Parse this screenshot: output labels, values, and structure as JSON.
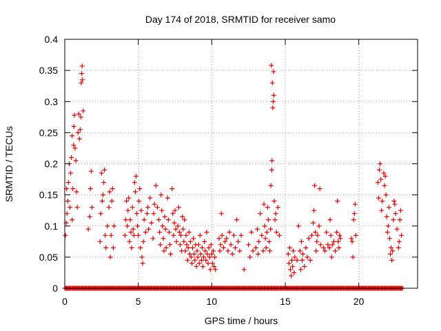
{
  "chart_data": {
    "type": "scatter",
    "title": "Day 174 of 2018, SRMTID for receiver samo",
    "xlabel": "GPS time / hours",
    "ylabel": "SRMTID / TECUs",
    "xlim": [
      0,
      24
    ],
    "ylim": [
      0,
      0.4
    ],
    "x_ticks": [
      0,
      5,
      10,
      15,
      20
    ],
    "x_tick_labels": [
      "0",
      "5",
      "10",
      "15",
      "20"
    ],
    "y_ticks": [
      0,
      0.05,
      0.1,
      0.15,
      0.2,
      0.25,
      0.3,
      0.35,
      0.4
    ],
    "y_tick_labels": [
      "0",
      "0.05",
      "0.1",
      "0.15",
      "0.2",
      "0.25",
      "0.3",
      "0.35",
      "0.4"
    ],
    "grid": true,
    "marker": "+",
    "color": "#dd0000",
    "series": [
      {
        "name": "SRMTID",
        "points": [
          [
            0.05,
            0.085
          ],
          [
            0.1,
            0.105
          ],
          [
            0.12,
            0.16
          ],
          [
            0.15,
            0.12
          ],
          [
            0.2,
            0.14
          ],
          [
            0.25,
            0.17
          ],
          [
            0.3,
            0.2
          ],
          [
            0.35,
            0.13
          ],
          [
            0.4,
            0.185
          ],
          [
            0.45,
            0.21
          ],
          [
            0.5,
            0.245
          ],
          [
            0.5,
            0.11
          ],
          [
            0.55,
            0.16
          ],
          [
            0.6,
            0.23
          ],
          [
            0.62,
            0.26
          ],
          [
            0.65,
            0.278
          ],
          [
            0.7,
            0.225
          ],
          [
            0.75,
            0.205
          ],
          [
            0.8,
            0.155
          ],
          [
            0.85,
            0.13
          ],
          [
            0.9,
            0.25
          ],
          [
            0.95,
            0.28
          ],
          [
            1.0,
            0.24
          ],
          [
            1.05,
            0.255
          ],
          [
            1.1,
            0.275
          ],
          [
            1.12,
            0.33
          ],
          [
            1.15,
            0.345
          ],
          [
            1.18,
            0.357
          ],
          [
            1.2,
            0.335
          ],
          [
            1.25,
            0.285
          ],
          [
            1.6,
            0.095
          ],
          [
            1.7,
            0.115
          ],
          [
            1.75,
            0.16
          ],
          [
            1.8,
            0.188
          ],
          [
            1.85,
            0.13
          ],
          [
            2.4,
            0.075
          ],
          [
            2.45,
            0.12
          ],
          [
            2.5,
            0.185
          ],
          [
            2.55,
            0.14
          ],
          [
            2.6,
            0.15
          ],
          [
            2.65,
            0.17
          ],
          [
            2.7,
            0.19
          ],
          [
            2.75,
            0.085
          ],
          [
            2.8,
            0.065
          ],
          [
            2.9,
            0.1
          ],
          [
            3.0,
            0.13
          ],
          [
            3.05,
            0.155
          ],
          [
            3.1,
            0.05
          ],
          [
            3.15,
            0.085
          ],
          [
            3.2,
            0.14
          ],
          [
            3.25,
            0.16
          ],
          [
            3.3,
            0.065
          ],
          [
            3.35,
            0.1
          ],
          [
            4.1,
            0.085
          ],
          [
            4.15,
            0.11
          ],
          [
            4.2,
            0.14
          ],
          [
            4.25,
            0.1
          ],
          [
            4.3,
            0.125
          ],
          [
            4.35,
            0.145
          ],
          [
            4.4,
            0.075
          ],
          [
            4.45,
            0.11
          ],
          [
            4.5,
            0.09
          ],
          [
            4.55,
            0.065
          ],
          [
            4.6,
            0.13
          ],
          [
            4.65,
            0.095
          ],
          [
            4.7,
            0.085
          ],
          [
            4.75,
            0.17
          ],
          [
            4.8,
            0.155
          ],
          [
            4.85,
            0.18
          ],
          [
            4.9,
            0.12
          ],
          [
            4.95,
            0.1
          ],
          [
            5.0,
            0.085
          ],
          [
            5.05,
            0.14
          ],
          [
            5.1,
            0.16
          ],
          [
            5.15,
            0.065
          ],
          [
            5.2,
            0.125
          ],
          [
            5.25,
            0.05
          ],
          [
            5.3,
            0.04
          ],
          [
            5.35,
            0.075
          ],
          [
            5.4,
            0.11
          ],
          [
            5.5,
            0.09
          ],
          [
            5.6,
            0.12
          ],
          [
            5.65,
            0.13
          ],
          [
            5.7,
            0.095
          ],
          [
            5.8,
            0.145
          ],
          [
            5.9,
            0.105
          ],
          [
            6.0,
            0.08
          ],
          [
            6.05,
            0.12
          ],
          [
            6.1,
            0.135
          ],
          [
            6.2,
            0.165
          ],
          [
            6.3,
            0.13
          ],
          [
            6.4,
            0.11
          ],
          [
            6.45,
            0.09
          ],
          [
            6.5,
            0.07
          ],
          [
            6.55,
            0.15
          ],
          [
            6.6,
            0.125
          ],
          [
            6.65,
            0.1
          ],
          [
            6.7,
            0.08
          ],
          [
            6.75,
            0.06
          ],
          [
            6.8,
            0.115
          ],
          [
            6.85,
            0.095
          ],
          [
            6.9,
            0.065
          ],
          [
            7.0,
            0.145
          ],
          [
            7.05,
            0.11
          ],
          [
            7.1,
            0.09
          ],
          [
            7.15,
            0.07
          ],
          [
            7.2,
            0.055
          ],
          [
            7.3,
            0.16
          ],
          [
            7.35,
            0.12
          ],
          [
            7.4,
            0.085
          ],
          [
            7.45,
            0.105
          ],
          [
            7.5,
            0.125
          ],
          [
            7.55,
            0.095
          ],
          [
            7.6,
            0.075
          ],
          [
            7.7,
            0.1
          ],
          [
            7.75,
            0.13
          ],
          [
            7.8,
            0.09
          ],
          [
            7.85,
            0.07
          ],
          [
            7.9,
            0.085
          ],
          [
            7.95,
            0.06
          ],
          [
            8.0,
            0.115
          ],
          [
            8.05,
            0.095
          ],
          [
            8.1,
            0.075
          ],
          [
            8.15,
            0.11
          ],
          [
            8.2,
            0.06
          ],
          [
            8.25,
            0.085
          ],
          [
            8.3,
            0.07
          ],
          [
            8.35,
            0.045
          ],
          [
            8.4,
            0.065
          ],
          [
            8.45,
            0.09
          ],
          [
            8.5,
            0.055
          ],
          [
            8.55,
            0.075
          ],
          [
            8.6,
            0.05
          ],
          [
            8.65,
            0.04
          ],
          [
            8.7,
            0.065
          ],
          [
            8.75,
            0.08
          ],
          [
            8.8,
            0.055
          ],
          [
            8.85,
            0.045
          ],
          [
            8.9,
            0.07
          ],
          [
            8.95,
            0.035
          ],
          [
            9.0,
            0.06
          ],
          [
            9.05,
            0.05
          ],
          [
            9.1,
            0.07
          ],
          [
            9.15,
            0.04
          ],
          [
            9.2,
            0.085
          ],
          [
            9.25,
            0.055
          ],
          [
            9.3,
            0.045
          ],
          [
            9.35,
            0.065
          ],
          [
            9.4,
            0.035
          ],
          [
            9.45,
            0.05
          ],
          [
            9.5,
            0.075
          ],
          [
            9.55,
            0.06
          ],
          [
            9.6,
            0.045
          ],
          [
            9.65,
            0.09
          ],
          [
            9.7,
            0.055
          ],
          [
            9.75,
            0.04
          ],
          [
            9.8,
            0.065
          ],
          [
            9.85,
            0.05
          ],
          [
            9.9,
            0.03
          ],
          [
            9.95,
            0.07
          ],
          [
            10.0,
            0.055
          ],
          [
            10.05,
            0.04
          ],
          [
            10.1,
            0.06
          ],
          [
            10.15,
            0.035
          ],
          [
            10.2,
            0.05
          ],
          [
            10.25,
            0.03
          ],
          [
            10.5,
            0.08
          ],
          [
            10.55,
            0.06
          ],
          [
            10.6,
            0.07
          ],
          [
            10.65,
            0.12
          ],
          [
            10.7,
            0.085
          ],
          [
            10.8,
            0.065
          ],
          [
            10.9,
            0.075
          ],
          [
            11.0,
            0.08
          ],
          [
            11.1,
            0.06
          ],
          [
            11.2,
            0.09
          ],
          [
            11.3,
            0.07
          ],
          [
            11.4,
            0.055
          ],
          [
            11.5,
            0.085
          ],
          [
            11.6,
            0.065
          ],
          [
            11.7,
            0.11
          ],
          [
            11.8,
            0.075
          ],
          [
            11.9,
            0.06
          ],
          [
            12.0,
            0.085
          ],
          [
            12.2,
            0.03
          ],
          [
            12.5,
            0.07
          ],
          [
            12.6,
            0.05
          ],
          [
            12.7,
            0.09
          ],
          [
            12.8,
            0.06
          ],
          [
            13.0,
            0.065
          ],
          [
            13.1,
            0.095
          ],
          [
            13.15,
            0.055
          ],
          [
            13.2,
            0.075
          ],
          [
            13.3,
            0.12
          ],
          [
            13.4,
            0.085
          ],
          [
            13.5,
            0.06
          ],
          [
            13.55,
            0.135
          ],
          [
            13.6,
            0.1
          ],
          [
            13.65,
            0.08
          ],
          [
            13.7,
            0.065
          ],
          [
            13.75,
            0.09
          ],
          [
            13.8,
            0.13
          ],
          [
            13.85,
            0.11
          ],
          [
            13.9,
            0.075
          ],
          [
            13.95,
            0.06
          ],
          [
            14.0,
            0.095
          ],
          [
            14.02,
            0.165
          ],
          [
            14.05,
            0.358
          ],
          [
            14.08,
            0.19
          ],
          [
            14.1,
            0.205
          ],
          [
            14.12,
            0.33
          ],
          [
            14.15,
            0.29
          ],
          [
            14.18,
            0.3
          ],
          [
            14.2,
            0.348
          ],
          [
            14.22,
            0.31
          ],
          [
            14.25,
            0.14
          ],
          [
            14.3,
            0.11
          ],
          [
            14.35,
            0.12
          ],
          [
            14.4,
            0.09
          ],
          [
            14.5,
            0.13
          ],
          [
            14.6,
            0.085
          ],
          [
            15.2,
            0.055
          ],
          [
            15.25,
            0.04
          ],
          [
            15.3,
            0.065
          ],
          [
            15.35,
            0.03
          ],
          [
            15.4,
            0.02
          ],
          [
            15.45,
            0.045
          ],
          [
            15.5,
            0.035
          ],
          [
            15.55,
            0.06
          ],
          [
            15.6,
            0.025
          ],
          [
            15.65,
            0.05
          ],
          [
            15.8,
            0.045
          ],
          [
            15.9,
            0.1
          ],
          [
            16.0,
            0.06
          ],
          [
            16.05,
            0.03
          ],
          [
            16.1,
            0.075
          ],
          [
            16.15,
            0.045
          ],
          [
            16.2,
            0.055
          ],
          [
            16.3,
            0.035
          ],
          [
            16.4,
            0.065
          ],
          [
            16.5,
            0.05
          ],
          [
            16.6,
            0.08
          ],
          [
            16.7,
            0.045
          ],
          [
            16.8,
            0.085
          ],
          [
            16.9,
            0.105
          ],
          [
            16.95,
            0.125
          ],
          [
            17.0,
            0.165
          ],
          [
            17.05,
            0.09
          ],
          [
            17.1,
            0.06
          ],
          [
            17.15,
            0.075
          ],
          [
            17.2,
            0.085
          ],
          [
            17.3,
            0.1
          ],
          [
            17.35,
            0.16
          ],
          [
            17.4,
            0.07
          ],
          [
            17.6,
            0.065
          ],
          [
            17.7,
            0.06
          ],
          [
            17.8,
            0.09
          ],
          [
            17.9,
            0.07
          ],
          [
            18.0,
            0.065
          ],
          [
            18.05,
            0.11
          ],
          [
            18.1,
            0.085
          ],
          [
            18.15,
            0.05
          ],
          [
            18.2,
            0.07
          ],
          [
            18.3,
            0.075
          ],
          [
            18.4,
            0.06
          ],
          [
            18.5,
            0.09
          ],
          [
            18.55,
            0.14
          ],
          [
            18.6,
            0.075
          ],
          [
            18.65,
            0.065
          ],
          [
            18.7,
            0.085
          ],
          [
            18.75,
            0.08
          ],
          [
            19.5,
            0.08
          ],
          [
            19.55,
            0.075
          ],
          [
            19.6,
            0.05
          ],
          [
            19.65,
            0.11
          ],
          [
            19.7,
            0.12
          ],
          [
            19.75,
            0.135
          ],
          [
            19.8,
            0.085
          ],
          [
            21.3,
            0.17
          ],
          [
            21.35,
            0.145
          ],
          [
            21.4,
            0.19
          ],
          [
            21.45,
            0.2
          ],
          [
            21.5,
            0.175
          ],
          [
            21.55,
            0.125
          ],
          [
            21.6,
            0.14
          ],
          [
            21.7,
            0.185
          ],
          [
            21.75,
            0.165
          ],
          [
            21.8,
            0.18
          ],
          [
            21.85,
            0.15
          ],
          [
            21.9,
            0.115
          ],
          [
            21.95,
            0.09
          ],
          [
            22.0,
            0.1
          ],
          [
            22.05,
            0.13
          ],
          [
            22.1,
            0.08
          ],
          [
            22.15,
            0.055
          ],
          [
            22.2,
            0.065
          ],
          [
            22.25,
            0.045
          ],
          [
            22.3,
            0.06
          ],
          [
            22.35,
            0.11
          ],
          [
            22.4,
            0.14
          ],
          [
            22.45,
            0.135
          ],
          [
            22.5,
            0.12
          ],
          [
            22.6,
            0.095
          ],
          [
            22.7,
            0.065
          ],
          [
            22.75,
            0.075
          ],
          [
            22.8,
            0.11
          ],
          [
            22.85,
            0.125
          ],
          [
            22.9,
            0.085
          ]
        ],
        "zero_band": [
          0,
          23
        ]
      }
    ]
  }
}
